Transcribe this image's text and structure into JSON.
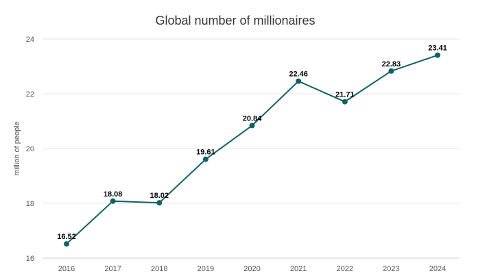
{
  "chart_data": {
    "type": "line",
    "title": "Global number of millionaires",
    "xlabel": "",
    "ylabel": "million of people",
    "categories": [
      "2016",
      "2017",
      "2018",
      "2019",
      "2020",
      "2021",
      "2022",
      "2023",
      "2024"
    ],
    "series": [
      {
        "values": [
          16.52,
          18.08,
          18.02,
          19.61,
          20.84,
          22.46,
          21.71,
          22.83,
          23.41
        ]
      }
    ],
    "data_labels": [
      "16.52",
      "18.08",
      "18.02",
      "19.61",
      "20.84",
      "22.46",
      "21.71",
      "22.83",
      "23.41"
    ],
    "ylim": [
      16,
      24
    ],
    "yticks": [
      16,
      18,
      20,
      22,
      24
    ],
    "ytick_labels": [
      "16",
      "18",
      "20",
      "22",
      "24"
    ],
    "grid": true,
    "legend": "none",
    "colors": {
      "line": "#0e6166",
      "marker": "#0e6166"
    }
  }
}
